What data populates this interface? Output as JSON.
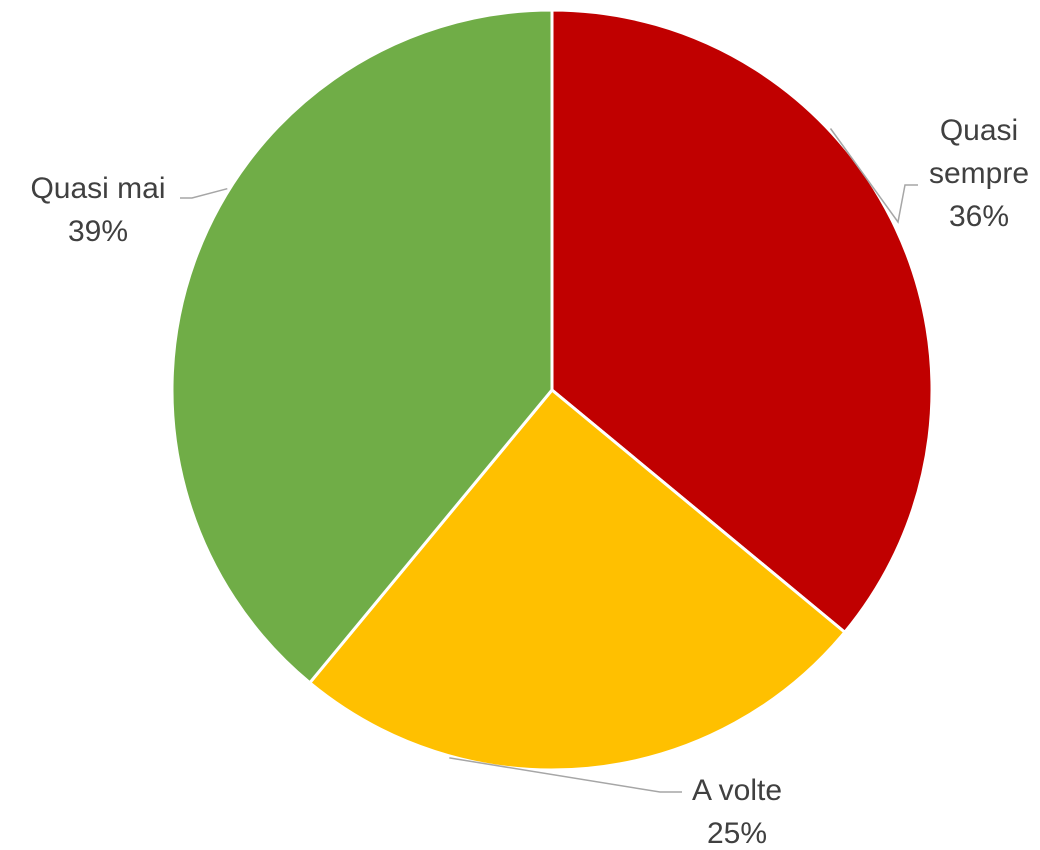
{
  "chart_data": {
    "type": "pie",
    "title": "",
    "start_angle_deg": 0,
    "direction": "clockwise",
    "slices": [
      {
        "label": "Quasi sempre",
        "label_lines": [
          "Quasi",
          "sempre"
        ],
        "value": 36,
        "value_label": "36%",
        "color": "#C00000"
      },
      {
        "label": "A volte",
        "label_lines": [
          "A volte"
        ],
        "value": 25,
        "value_label": "25%",
        "color": "#FFC000"
      },
      {
        "label": "Quasi mai",
        "label_lines": [
          "Quasi mai"
        ],
        "value": 39,
        "value_label": "39%",
        "color": "#70AD47"
      }
    ],
    "legend": "none",
    "data_labels": "outside-with-leader-lines"
  }
}
